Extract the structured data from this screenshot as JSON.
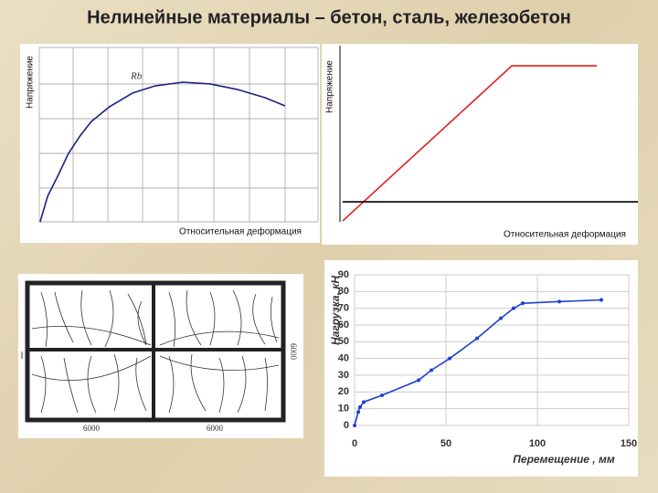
{
  "title": "Нелинейные материалы – бетон, сталь, железобетон",
  "chart_data": [
    {
      "type": "line",
      "ylabel": "Напряжение",
      "xlabel": "Относительная деформация",
      "annotation": "Rb",
      "xlim": [
        0,
        1
      ],
      "ylim": [
        0,
        1
      ],
      "grid": true,
      "series": [
        {
          "color": "#1a237e",
          "x": [
            0.003,
            0.03,
            0.066,
            0.105,
            0.148,
            0.187,
            0.252,
            0.334,
            0.416,
            0.515,
            0.613,
            0.711,
            0.81,
            0.882
          ],
          "values": [
            0,
            0.147,
            0.262,
            0.393,
            0.497,
            0.576,
            0.66,
            0.738,
            0.78,
            0.801,
            0.791,
            0.759,
            0.712,
            0.665
          ]
        }
      ]
    },
    {
      "type": "line",
      "ylabel": "Напряжение",
      "xlabel": "Относительная деформация",
      "xlim": [
        0,
        1
      ],
      "ylim": [
        0,
        1
      ],
      "grid": false,
      "series": [
        {
          "color": "#e02020",
          "x": [
            0.009,
            0.577,
            0.862
          ],
          "values": [
            0.005,
            0.895,
            0.895
          ]
        },
        {
          "color": "#000000",
          "x": [
            0.009,
            1
          ],
          "values": [
            0.115,
            0.115
          ]
        }
      ]
    },
    {
      "type": "line",
      "ylabel": "Нагрузка, кН",
      "xlabel": "Перемещение , мм",
      "xlim": [
        0,
        150
      ],
      "ylim": [
        0,
        90
      ],
      "xticks": [
        0,
        50,
        100,
        150
      ],
      "yticks": [
        0,
        10,
        20,
        30,
        40,
        50,
        60,
        70,
        80,
        90
      ],
      "grid": true,
      "markers": true,
      "series": [
        {
          "color": "#1f3fd0",
          "x": [
            0,
            2,
            3,
            5,
            15,
            35,
            42,
            52,
            67,
            80,
            87,
            92,
            112,
            135
          ],
          "values": [
            0,
            8,
            11,
            14,
            18,
            27,
            33,
            40,
            52,
            64,
            70,
            73,
            74,
            75
          ]
        }
      ]
    }
  ],
  "drawing": {
    "labels": [
      "6000",
      "6000",
      "6000",
      "I"
    ]
  }
}
